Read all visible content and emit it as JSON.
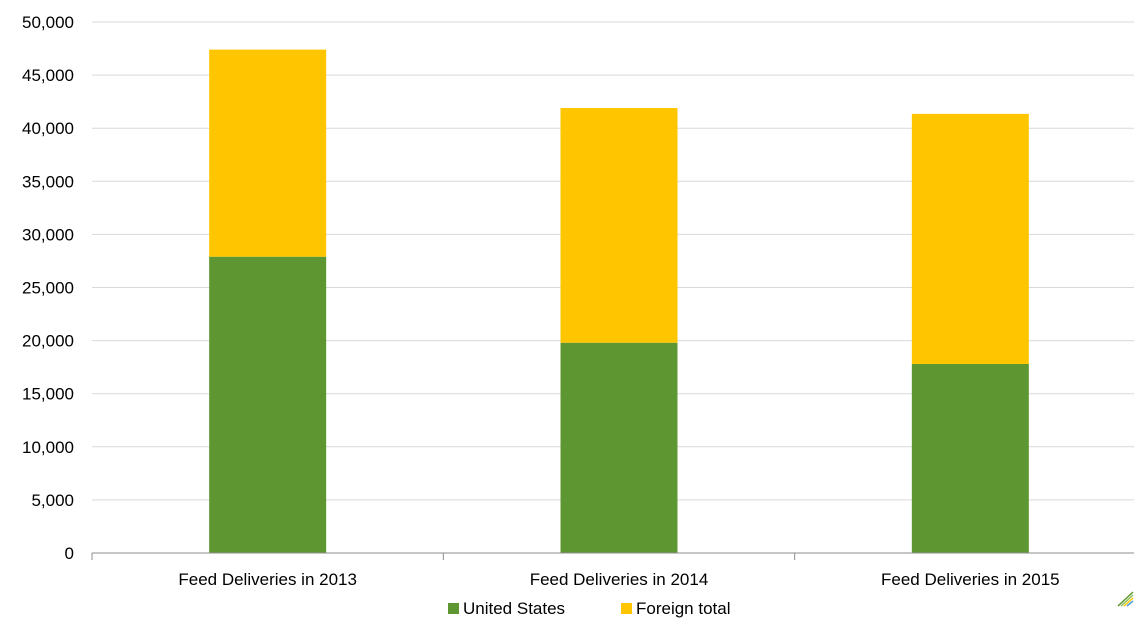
{
  "chart_data": {
    "type": "bar",
    "stacked": true,
    "categories": [
      "Feed Deliveries in 2013",
      "Feed Deliveries in 2014",
      "Feed Deliveries in 2015"
    ],
    "series": [
      {
        "name": "United States",
        "color": "#5e9732",
        "values": [
          27900,
          19800,
          17800
        ]
      },
      {
        "name": "Foreign total",
        "color": "#ffc600",
        "values": [
          19500,
          22100,
          23550
        ]
      }
    ],
    "ylim": [
      0,
      50000
    ],
    "yticks": [
      0,
      5000,
      10000,
      15000,
      20000,
      25000,
      30000,
      35000,
      40000,
      45000,
      50000
    ],
    "ytick_labels": [
      "0",
      "5,000",
      "10,000",
      "15,000",
      "20,000",
      "25,000",
      "30,000",
      "35,000",
      "40,000",
      "45,000",
      "50,000"
    ],
    "title": "",
    "xlabel": "",
    "ylabel": "",
    "grid": true,
    "legend_position": "bottom-center"
  },
  "colors": {
    "gridline": "#d9d9d9",
    "axis": "#8c8c8c"
  },
  "icons": {
    "corner_mark": "diagonal-stripes-logo-icon"
  }
}
